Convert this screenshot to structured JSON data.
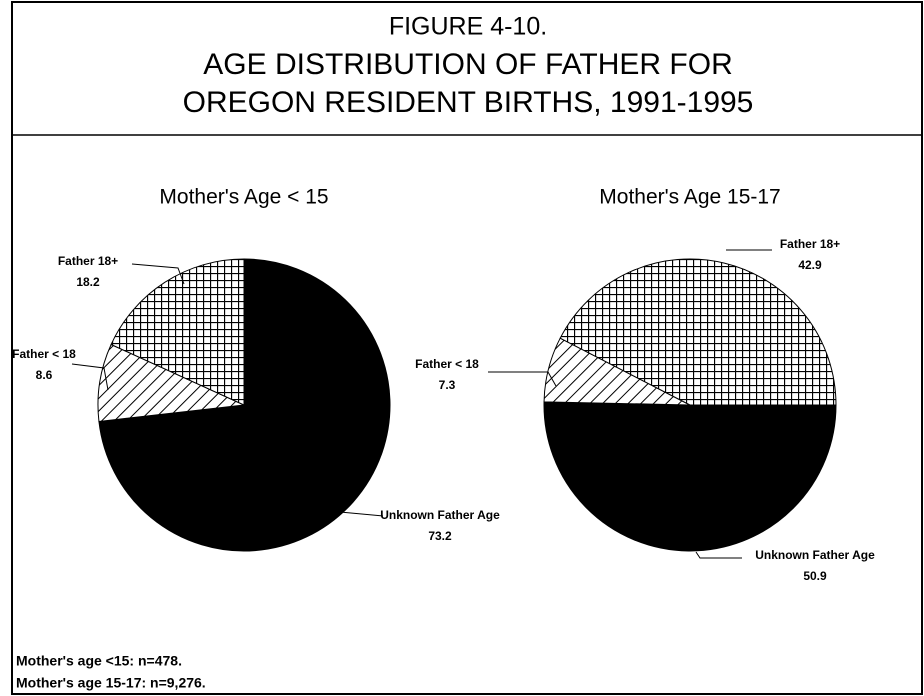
{
  "figure_title": [
    "FIGURE 4-10.",
    "AGE DISTRIBUTION OF FATHER FOR",
    "OREGON RESIDENT BIRTHS, 1991-1995"
  ],
  "chart_data": [
    {
      "type": "pie",
      "title": "Mother's Age < 15",
      "categories": [
        "Unknown Father Age",
        "Father < 18",
        "Father 18+"
      ],
      "values": [
        73.2,
        8.6,
        18.2
      ],
      "patterns": [
        "solid",
        "diagonal",
        "crosshatch"
      ],
      "start_angle": 0
    },
    {
      "type": "pie",
      "title": "Mother's Age 15-17",
      "categories": [
        "Unknown Father Age",
        "Father < 18",
        "Father 18+"
      ],
      "values": [
        50.9,
        7.3,
        42.9
      ],
      "patterns": [
        "solid",
        "diagonal",
        "crosshatch"
      ],
      "start_angle": 90
    }
  ],
  "notes": [
    "Mother's age <15: n=478.",
    "Mother's age 15-17: n=9,276."
  ]
}
